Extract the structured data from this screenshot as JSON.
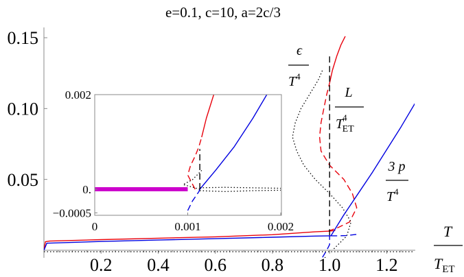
{
  "chart_data": [
    {
      "type": "line",
      "title": "e=0.1, c=10, a=2c/3",
      "xlabel": "T / T_ET",
      "ylabel": "",
      "xlim": [
        0.0,
        1.3
      ],
      "ylim": [
        -0.008,
        0.152
      ],
      "x_ticks": [
        {
          "v": 0.2,
          "label": "0.2"
        },
        {
          "v": 0.4,
          "label": "0.4"
        },
        {
          "v": 0.6,
          "label": "0.6"
        },
        {
          "v": 0.8,
          "label": "0.8"
        },
        {
          "v": 1.0,
          "label": "1.0"
        },
        {
          "v": 1.2,
          "label": "1.2"
        }
      ],
      "y_ticks": [
        {
          "v": 0.05,
          "label": "0.05"
        },
        {
          "v": 0.1,
          "label": "0.10"
        },
        {
          "v": 0.15,
          "label": "0.15"
        }
      ],
      "series_labels": {
        "energy": {
          "num": "ϵ",
          "den": "T",
          "den_sup": "4"
        },
        "latent": {
          "num": "L",
          "den": "T",
          "den_sub": "ET",
          "den_sup": "4"
        },
        "pressure": {
          "num": "3 p",
          "den": "T",
          "den_sup": "4"
        }
      },
      "series": [
        {
          "color": "#e8000b",
          "style": "solid",
          "points": [
            [
              0.0,
              0.0
            ],
            [
              0.005,
              0.006
            ],
            [
              0.02,
              0.0065
            ],
            [
              0.2,
              0.0075
            ],
            [
              0.4,
              0.0085
            ],
            [
              0.6,
              0.0095
            ],
            [
              0.8,
              0.011
            ],
            [
              0.95,
              0.013
            ],
            [
              1.0,
              0.0135
            ],
            [
              1.02,
              0.014
            ]
          ]
        },
        {
          "color": "#0000e0",
          "style": "solid",
          "points": [
            [
              0.0,
              0.0
            ],
            [
              0.01,
              0.005
            ],
            [
              0.2,
              0.0062
            ],
            [
              0.4,
              0.0072
            ],
            [
              0.6,
              0.0082
            ],
            [
              0.8,
              0.0092
            ],
            [
              0.95,
              0.01
            ],
            [
              1.005,
              0.0102
            ]
          ]
        },
        {
          "color": "#e8000b",
          "style": "dashed",
          "points": [
            [
              0.995,
              0.0135
            ],
            [
              1.03,
              0.016
            ],
            [
              1.07,
              0.02
            ],
            [
              1.095,
              0.03
            ],
            [
              1.08,
              0.04
            ],
            [
              1.05,
              0.05
            ],
            [
              1.0,
              0.06
            ],
            [
              0.97,
              0.07
            ],
            [
              0.965,
              0.08
            ],
            [
              0.97,
              0.09
            ],
            [
              0.98,
              0.1
            ],
            [
              0.99,
              0.11
            ],
            [
              1.0,
              0.118
            ]
          ]
        },
        {
          "color": "#e8000b",
          "style": "solid",
          "points": [
            [
              1.0,
              0.118
            ],
            [
              1.01,
              0.127
            ],
            [
              1.025,
              0.137
            ],
            [
              1.04,
              0.145
            ],
            [
              1.055,
              0.151
            ]
          ]
        },
        {
          "color": "#000000",
          "style": "dotted",
          "points": [
            [
              1.015,
              0.001
            ],
            [
              1.06,
              0.01
            ],
            [
              1.075,
              0.02
            ],
            [
              1.045,
              0.03
            ],
            [
              1.0,
              0.04
            ],
            [
              0.95,
              0.05
            ],
            [
              0.91,
              0.06
            ],
            [
              0.885,
              0.07
            ],
            [
              0.87,
              0.08
            ],
            [
              0.88,
              0.09
            ],
            [
              0.9,
              0.1
            ],
            [
              0.93,
              0.11
            ],
            [
              0.96,
              0.12
            ],
            [
              0.975,
              0.127
            ]
          ]
        },
        {
          "color": "#000000",
          "style": "dashed",
          "points": [
            [
              1.0,
              0.0105
            ],
            [
              1.0,
              0.137
            ]
          ]
        },
        {
          "color": "#0000e0",
          "style": "solid",
          "points": [
            [
              1.005,
              0.0102
            ],
            [
              1.05,
              0.025
            ],
            [
              1.1,
              0.04
            ],
            [
              1.15,
              0.055
            ],
            [
              1.2,
              0.071
            ],
            [
              1.25,
              0.087
            ],
            [
              1.3,
              0.104
            ]
          ]
        },
        {
          "color": "#0000e0",
          "style": "dashed",
          "points": [
            [
              0.96,
              -0.011
            ],
            [
              0.975,
              -0.005
            ],
            [
              0.99,
              0.0
            ],
            [
              1.0,
              0.004
            ],
            [
              1.0,
              0.0102
            ]
          ]
        },
        {
          "color": "#0000e0",
          "style": "dashed",
          "points": [
            [
              1.005,
              0.0102
            ],
            [
              1.03,
              0.0102
            ],
            [
              1.06,
              0.0104
            ],
            [
              1.09,
              0.0111
            ],
            [
              1.1,
              0.0113
            ]
          ]
        },
        {
          "color": "#000000",
          "style": "dotted",
          "points": [
            [
              0.0,
              -0.001
            ],
            [
              0.6,
              -0.001
            ],
            [
              1.3,
              -0.001
            ]
          ]
        },
        {
          "color": "#000000",
          "style": "dotted",
          "points": [
            [
              0.95,
              -0.011
            ],
            [
              0.97,
              -0.008
            ],
            [
              0.99,
              -0.004
            ]
          ]
        }
      ]
    },
    {
      "type": "line",
      "title": "",
      "xlim": [
        0.0,
        0.002
      ],
      "ylim": [
        -0.0005,
        0.002
      ],
      "x_ticks": [
        {
          "v": 0.0,
          "label": "0"
        },
        {
          "v": 0.001,
          "label": "0.001"
        },
        {
          "v": 0.002,
          "label": "0.002"
        }
      ],
      "y_ticks": [
        {
          "v": -0.0005,
          "label": "−0.0005"
        },
        {
          "v": 0.0,
          "label": "0."
        },
        {
          "v": 0.002,
          "label": "0.002"
        }
      ],
      "series": [
        {
          "color": "#cc00cc",
          "style": "thick",
          "points": [
            [
              0.0,
              0.0
            ],
            [
              0.001,
              0.0
            ]
          ]
        },
        {
          "color": "#e8000b",
          "style": "dashed",
          "points": [
            [
              0.00108,
              0.0
            ],
            [
              0.001,
              0.0003
            ],
            [
              0.00103,
              0.0005
            ],
            [
              0.00108,
              0.0007
            ],
            [
              0.00112,
              0.0009
            ],
            [
              0.00115,
              0.0011
            ]
          ]
        },
        {
          "color": "#e8000b",
          "style": "solid",
          "points": [
            [
              0.00115,
              0.0011
            ],
            [
              0.0012,
              0.0015
            ],
            [
              0.00128,
              0.002
            ]
          ]
        },
        {
          "color": "#0000e0",
          "style": "solid",
          "points": [
            [
              0.00113,
              0.0
            ],
            [
              0.0013,
              0.0004
            ],
            [
              0.0015,
              0.0009
            ],
            [
              0.0017,
              0.0015
            ],
            [
              0.00185,
              0.002
            ]
          ]
        },
        {
          "color": "#0000e0",
          "style": "dashed",
          "points": [
            [
              0.001,
              -0.00045
            ],
            [
              0.00105,
              -0.00025
            ],
            [
              0.00112,
              -5e-05
            ],
            [
              0.00113,
              0.0
            ]
          ]
        },
        {
          "color": "#000000",
          "style": "dashed",
          "points": [
            [
              0.00113,
              0.0
            ],
            [
              0.00113,
              0.00085
            ]
          ]
        },
        {
          "color": "#000000",
          "style": "dotted",
          "points": [
            [
              0.00113,
              0.0
            ],
            [
              0.00095,
              0.0001
            ],
            [
              0.00105,
              0.0002
            ],
            [
              0.00115,
              0.0004
            ]
          ]
        },
        {
          "color": "#000000",
          "style": "dotted",
          "points": [
            [
              0.00113,
              3e-05
            ],
            [
              0.0014,
              4e-05
            ],
            [
              0.0017,
              3e-05
            ],
            [
              0.002,
              2e-05
            ]
          ]
        },
        {
          "color": "#000000",
          "style": "dotted",
          "points": [
            [
              0.00113,
              -3e-05
            ],
            [
              0.0014,
              -5e-05
            ],
            [
              0.0017,
              -3e-05
            ],
            [
              0.002,
              -2e-05
            ]
          ]
        }
      ]
    }
  ]
}
